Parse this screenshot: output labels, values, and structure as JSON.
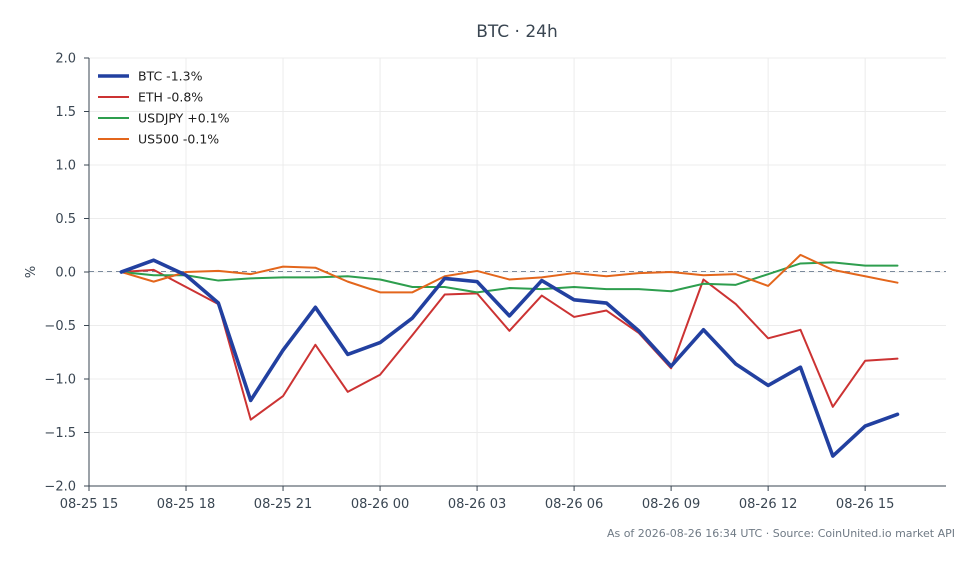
{
  "chart_data": {
    "type": "line",
    "title": "BTC · 24h",
    "xlabel": "",
    "ylabel": "%",
    "ylim": [
      -2.0,
      2.0
    ],
    "xlim": [
      "2026-08-25 15:00",
      "2026-08-26 17:30"
    ],
    "yticks": [
      2.0,
      1.5,
      1.0,
      0.5,
      0.0,
      -0.5,
      -1.0,
      -1.5,
      -2.0
    ],
    "ytick_labels": [
      "2.0",
      "1.5",
      "1.0",
      "0.5",
      "0.0",
      "−0.5",
      "−1.0",
      "−1.5",
      "−2.0"
    ],
    "xticks": [
      "2026-08-25 15:00",
      "2026-08-25 18:00",
      "2026-08-25 21:00",
      "2026-08-26 00:00",
      "2026-08-26 03:00",
      "2026-08-26 06:00",
      "2026-08-26 09:00",
      "2026-08-26 12:00",
      "2026-08-26 15:00"
    ],
    "xtick_labels": [
      "08-25 15",
      "08-25 18",
      "08-25 21",
      "08-26 00",
      "08-26 03",
      "08-26 06",
      "08-26 09",
      "08-26 12",
      "08-26 15"
    ],
    "grid": true,
    "zero_line": true,
    "legend_position": "top-left",
    "x": [
      "2026-08-25 16:00",
      "2026-08-25 17:00",
      "2026-08-25 18:00",
      "2026-08-25 19:00",
      "2026-08-25 20:00",
      "2026-08-25 21:00",
      "2026-08-25 22:00",
      "2026-08-25 23:00",
      "2026-08-26 00:00",
      "2026-08-26 01:00",
      "2026-08-26 02:00",
      "2026-08-26 03:00",
      "2026-08-26 04:00",
      "2026-08-26 05:00",
      "2026-08-26 06:00",
      "2026-08-26 07:00",
      "2026-08-26 08:00",
      "2026-08-26 09:00",
      "2026-08-26 10:00",
      "2026-08-26 11:00",
      "2026-08-26 12:00",
      "2026-08-26 13:00",
      "2026-08-26 14:00",
      "2026-08-26 15:00",
      "2026-08-26 16:00"
    ],
    "series": [
      {
        "name": "BTC -1.3%",
        "color": "#2240a0",
        "values": [
          0.0,
          0.11,
          -0.03,
          -0.29,
          -1.2,
          -0.73,
          -0.33,
          -0.77,
          -0.66,
          -0.43,
          -0.06,
          -0.09,
          -0.41,
          -0.08,
          -0.26,
          -0.29,
          -0.55,
          -0.88,
          -0.54,
          -0.86,
          -1.06,
          -0.89,
          -1.72,
          -1.44,
          -1.33
        ]
      },
      {
        "name": "ETH -0.8%",
        "color": "#cc3333",
        "values": [
          0.0,
          0.02,
          -0.14,
          -0.3,
          -1.38,
          -1.16,
          -0.68,
          -1.12,
          -0.96,
          -0.59,
          -0.21,
          -0.2,
          -0.55,
          -0.22,
          -0.42,
          -0.36,
          -0.57,
          -0.9,
          -0.07,
          -0.3,
          -0.62,
          -0.54,
          -1.26,
          -0.83,
          -0.81
        ]
      },
      {
        "name": "USDJPY +0.1%",
        "color": "#2e9e4e",
        "values": [
          0.0,
          -0.03,
          -0.03,
          -0.08,
          -0.06,
          -0.05,
          -0.05,
          -0.04,
          -0.07,
          -0.14,
          -0.14,
          -0.19,
          -0.15,
          -0.16,
          -0.14,
          -0.16,
          -0.16,
          -0.18,
          -0.11,
          -0.12,
          -0.02,
          0.08,
          0.09,
          0.06,
          0.06
        ]
      },
      {
        "name": "US500 -0.1%",
        "color": "#e3661c",
        "values": [
          0.0,
          -0.09,
          0.0,
          0.01,
          -0.02,
          0.05,
          0.04,
          -0.09,
          -0.19,
          -0.19,
          -0.04,
          0.01,
          -0.07,
          -0.05,
          -0.01,
          -0.04,
          -0.01,
          0.0,
          -0.03,
          -0.02,
          -0.13,
          0.16,
          0.02,
          -0.04,
          -0.1
        ]
      }
    ]
  },
  "footer": {
    "note": "As of 2026-08-26 16:34 UTC · Source: CoinUnited.io market API"
  }
}
